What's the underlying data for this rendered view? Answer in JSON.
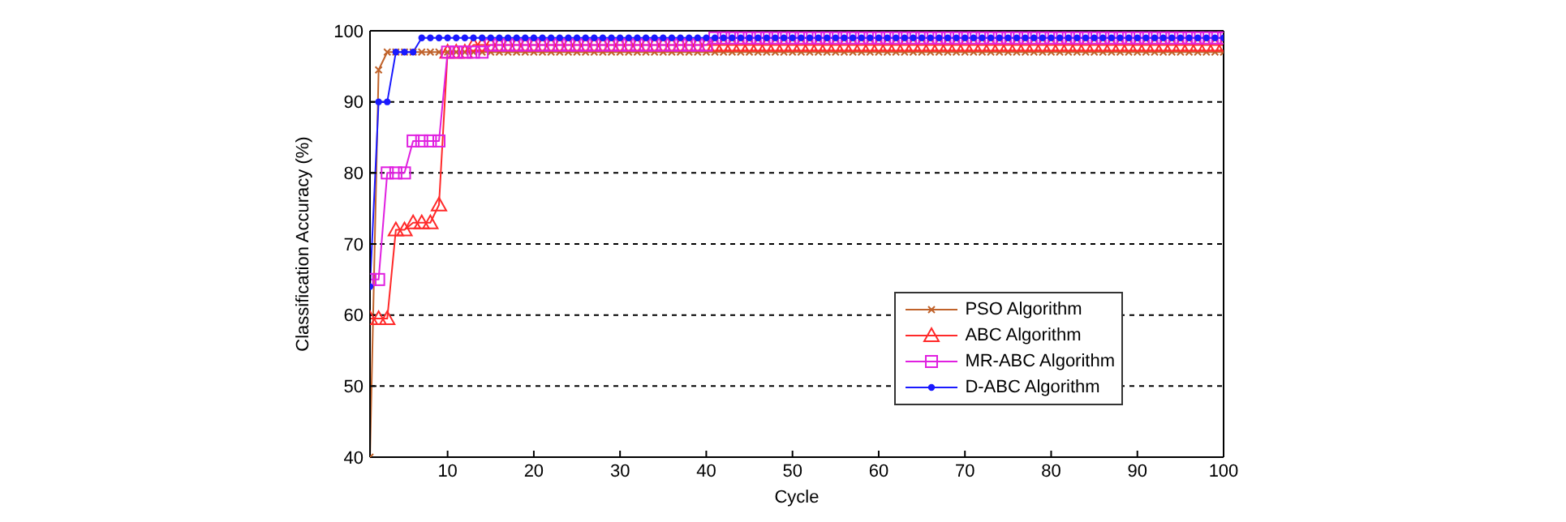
{
  "chart_data": {
    "type": "line",
    "xlabel": "Cycle",
    "ylabel": "Classification Accuracy (%)",
    "xlim": [
      1,
      100
    ],
    "xticks": [
      10,
      20,
      30,
      40,
      50,
      60,
      70,
      80,
      90,
      100
    ],
    "ylim": [
      40,
      100
    ],
    "yticks": [
      40,
      50,
      60,
      70,
      80,
      90,
      100
    ],
    "grid": "y",
    "legend": "bottom right",
    "line_style": "solid",
    "x": [
      1,
      2,
      3,
      4,
      5,
      6,
      7,
      8,
      9,
      10,
      11,
      12,
      13,
      14,
      15,
      16,
      17,
      18,
      19,
      20,
      21,
      22,
      23,
      24,
      25,
      26,
      27,
      28,
      29,
      30,
      31,
      32,
      33,
      34,
      35,
      36,
      37,
      38,
      39,
      40,
      41,
      42,
      43,
      44,
      45,
      46,
      47,
      48,
      49,
      50,
      51,
      52,
      53,
      54,
      55,
      56,
      57,
      58,
      59,
      60,
      61,
      62,
      63,
      64,
      65,
      66,
      67,
      68,
      69,
      70,
      71,
      72,
      73,
      74,
      75,
      76,
      77,
      78,
      79,
      80,
      81,
      82,
      83,
      84,
      85,
      86,
      87,
      88,
      89,
      90,
      91,
      92,
      93,
      94,
      95,
      96,
      97,
      98,
      99,
      100
    ],
    "series": [
      {
        "name": "PSO Algorithm",
        "color": "#c0622a",
        "marker": "cross",
        "values": [
          40,
          94.5,
          97,
          97,
          97,
          97,
          97,
          97,
          97,
          97,
          97,
          97,
          97,
          97,
          97,
          97,
          97,
          97,
          97,
          97,
          97,
          97,
          97,
          97,
          97,
          97,
          97,
          97,
          97,
          97,
          97,
          97,
          97,
          97,
          97,
          97,
          97,
          97,
          97,
          97,
          97,
          97,
          97,
          97,
          97,
          97,
          97,
          97,
          97,
          97,
          97,
          97,
          97,
          97,
          97,
          97,
          97,
          97,
          97,
          97,
          97,
          97,
          97,
          97,
          97,
          97,
          97,
          97,
          97,
          97,
          97,
          97,
          97,
          97,
          97,
          97,
          97,
          97,
          97,
          97,
          97,
          97,
          97,
          97,
          97,
          97,
          97,
          97,
          97,
          97,
          97,
          97,
          97,
          97,
          97,
          97,
          97,
          97,
          97,
          97
        ]
      },
      {
        "name": "ABC Algorithm",
        "color": "#ff2a2a",
        "marker": "triangle",
        "values": [
          59.5,
          59.5,
          59.5,
          72,
          72,
          73,
          73,
          73,
          75.5,
          97,
          97,
          97,
          98,
          98,
          98,
          98,
          98,
          98,
          98,
          98,
          98,
          98,
          98,
          98,
          98,
          98,
          98,
          98,
          98,
          98,
          98,
          98,
          98,
          98,
          98,
          98,
          98,
          98,
          98,
          98,
          98,
          98,
          98,
          98,
          98,
          98,
          98,
          98,
          98,
          98,
          98,
          98,
          98,
          98,
          98,
          98,
          98,
          98,
          98,
          98,
          98,
          98,
          98,
          98,
          98,
          98,
          98,
          98,
          98,
          98,
          98,
          98,
          98,
          98,
          98,
          98,
          98,
          98,
          98,
          98,
          98,
          98,
          98,
          98,
          98,
          98,
          98,
          98,
          98,
          98,
          98,
          98,
          98,
          98,
          98,
          98,
          98,
          98,
          98,
          98
        ]
      },
      {
        "name": "MR-ABC Algorithm",
        "color": "#e020e0",
        "marker": "square",
        "values": [
          65,
          65,
          80,
          80,
          80,
          84.5,
          84.5,
          84.5,
          84.5,
          97,
          97,
          97,
          97,
          97,
          98,
          98,
          98,
          98,
          98,
          98,
          98,
          98,
          98,
          98,
          98,
          98,
          98,
          98,
          98,
          98,
          98,
          98,
          98,
          98,
          98,
          98,
          98,
          98,
          98,
          98,
          99,
          99,
          99,
          99,
          99,
          99,
          99,
          99,
          99,
          99,
          99,
          99,
          99,
          99,
          99,
          99,
          99,
          99,
          99,
          99,
          99,
          99,
          99,
          99,
          99,
          99,
          99,
          99,
          99,
          99,
          99,
          99,
          99,
          99,
          99,
          99,
          99,
          99,
          99,
          99,
          99,
          99,
          99,
          99,
          99,
          99,
          99,
          99,
          99,
          99,
          99,
          99,
          99,
          99,
          99,
          99,
          99,
          99,
          99,
          99
        ]
      },
      {
        "name": "D-ABC Algorithm",
        "color": "#1a1aff",
        "marker": "circle",
        "values": [
          64,
          90,
          90,
          97,
          97,
          97,
          99,
          99,
          99,
          99,
          99,
          99,
          99,
          99,
          99,
          99,
          99,
          99,
          99,
          99,
          99,
          99,
          99,
          99,
          99,
          99,
          99,
          99,
          99,
          99,
          99,
          99,
          99,
          99,
          99,
          99,
          99,
          99,
          99,
          99,
          99,
          99,
          99,
          99,
          99,
          99,
          99,
          99,
          99,
          99,
          99,
          99,
          99,
          99,
          99,
          99,
          99,
          99,
          99,
          99,
          99,
          99,
          99,
          99,
          99,
          99,
          99,
          99,
          99,
          99,
          99,
          99,
          99,
          99,
          99,
          99,
          99,
          99,
          99,
          99,
          99,
          99,
          99,
          99,
          99,
          99,
          99,
          99,
          99,
          99,
          99,
          99,
          99,
          99,
          99,
          99,
          99,
          99,
          99,
          99
        ]
      }
    ]
  }
}
